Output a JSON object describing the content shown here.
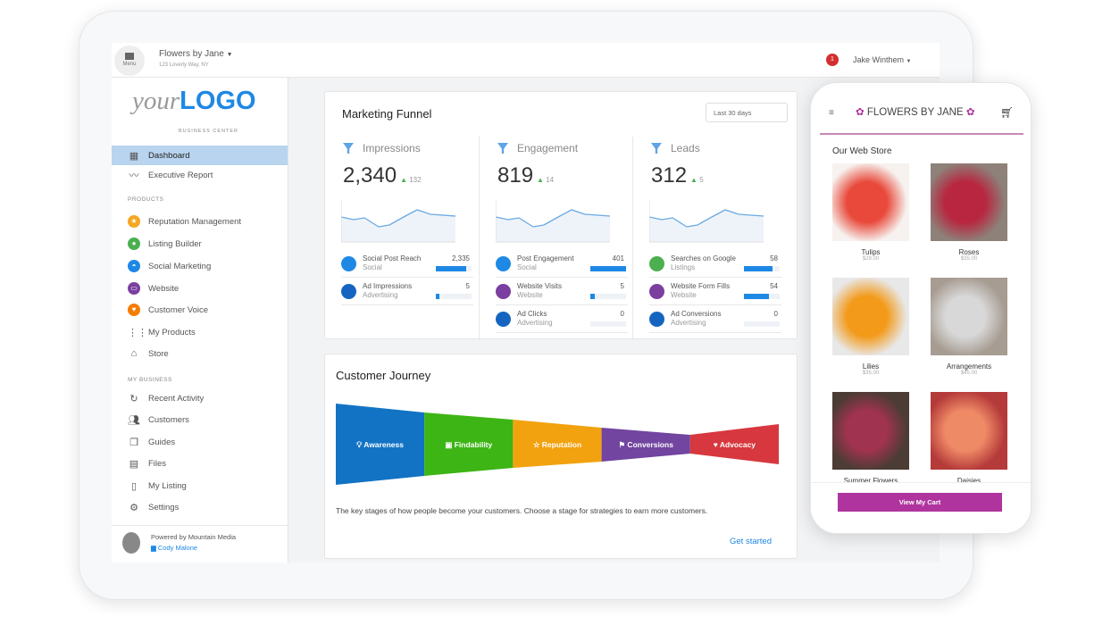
{
  "topbar": {
    "menu_label": "Menu",
    "business_name": "Flowers by Jane",
    "business_address": "123 Loverly Way, NY",
    "user_name": "Jake Winthem",
    "notification_count": "1"
  },
  "sidebar": {
    "logo_your": "your",
    "logo_logo": "LOGO",
    "logo_sub": "BUSINESS CENTER",
    "items": [
      {
        "label": "Dashboard"
      },
      {
        "label": "Executive Report"
      }
    ],
    "products_header": "PRODUCTS",
    "products": [
      {
        "label": "Reputation Management",
        "color": "#f5a623"
      },
      {
        "label": "Listing Builder",
        "color": "#4caf50"
      },
      {
        "label": "Social Marketing",
        "color": "#1e88e5"
      },
      {
        "label": "Website",
        "color": "#7b3fa0"
      },
      {
        "label": "Customer Voice",
        "color": "#f57c00"
      },
      {
        "label": "My Products"
      },
      {
        "label": "Store"
      }
    ],
    "business_header": "MY BUSINESS",
    "business": [
      {
        "label": "Recent Activity"
      },
      {
        "label": "Customers"
      },
      {
        "label": "Guides"
      },
      {
        "label": "Files"
      },
      {
        "label": "My Listing"
      },
      {
        "label": "Settings"
      }
    ],
    "powered_by": "Powered by Mountain Media",
    "contact": "Cody Malone"
  },
  "funnel": {
    "title": "Marketing Funnel",
    "range": "Last 30 days",
    "columns": [
      {
        "label": "Impressions",
        "value": "2,340",
        "delta": "132",
        "rows": [
          {
            "t1": "Social Post Reach",
            "t2": "Social",
            "v": "2,335",
            "fill": 0.85,
            "color": "#1e88e5"
          },
          {
            "t1": "Ad Impressions",
            "t2": "Advertising",
            "v": "5",
            "fill": 0.1,
            "color": "#1565c0"
          }
        ]
      },
      {
        "label": "Engagement",
        "value": "819",
        "delta": "14",
        "rows": [
          {
            "t1": "Post Engagement",
            "t2": "Social",
            "v": "401",
            "fill": 1.0,
            "color": "#1e88e5"
          },
          {
            "t1": "Website Visits",
            "t2": "Website",
            "v": "5",
            "fill": 0.12,
            "color": "#7b3fa0"
          },
          {
            "t1": "Ad Clicks",
            "t2": "Advertising",
            "v": "0",
            "fill": 0,
            "color": "#1565c0"
          }
        ]
      },
      {
        "label": "Leads",
        "value": "312",
        "delta": "5",
        "rows": [
          {
            "t1": "Searches on Google",
            "t2": "Listings",
            "v": "58",
            "fill": 0.8,
            "color": "#4caf50"
          },
          {
            "t1": "Website Form Fills",
            "t2": "Website",
            "v": "54",
            "fill": 0.7,
            "color": "#7b3fa0"
          },
          {
            "t1": "Ad Conversions",
            "t2": "Advertising",
            "v": "0",
            "fill": 0,
            "color": "#1565c0"
          }
        ]
      }
    ]
  },
  "journey": {
    "title": "Customer Journey",
    "stages": [
      {
        "label": "Awareness",
        "color": "#1273c4"
      },
      {
        "label": "Findability",
        "color": "#3db514"
      },
      {
        "label": "Reputation",
        "color": "#f2a20f"
      },
      {
        "label": "Conversions",
        "color": "#7145a0"
      },
      {
        "label": "Advocacy",
        "color": "#d7373e"
      }
    ],
    "description": "The key stages of how people become your customers. Choose a stage for strategies to earn more customers.",
    "cta": "Get started"
  },
  "phone": {
    "brand": "FLOWERS BY JANE",
    "section": "Our Web Store",
    "button": "View My Cart",
    "accent": "#b0349e",
    "products": [
      {
        "name": "Tulips",
        "price": "$29.00",
        "c1": "#e8493a",
        "c2": "#f7f2ef"
      },
      {
        "name": "Roses",
        "price": "$35.00",
        "c1": "#b8263f",
        "c2": "#8d8179"
      },
      {
        "name": "Lilies",
        "price": "$35.00",
        "c1": "#f39a1a",
        "c2": "#e8e8e8"
      },
      {
        "name": "Arrangements",
        "price": "$45.00",
        "c1": "#d8d8d8",
        "c2": "#a79c92"
      },
      {
        "name": "Summer Flowers",
        "price": "",
        "c1": "#a0334f",
        "c2": "#4b3c35"
      },
      {
        "name": "Daisies",
        "price": "",
        "c1": "#ef8a66",
        "c2": "#b53a3a"
      }
    ]
  }
}
